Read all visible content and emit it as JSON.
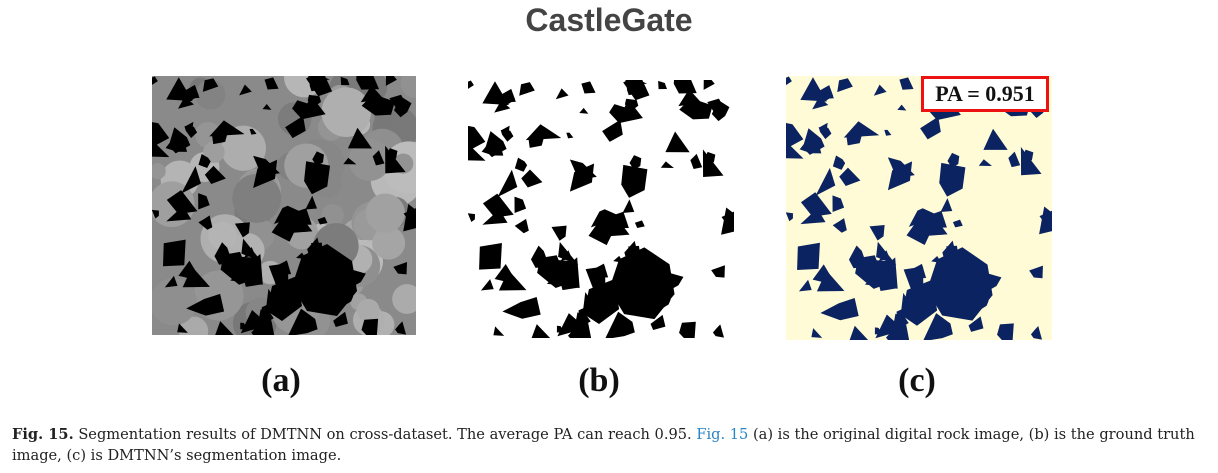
{
  "title": "CastleGate",
  "panels": [
    {
      "label": "(a)"
    },
    {
      "label": "(b)"
    },
    {
      "label": "(c)"
    }
  ],
  "pa_annotation": "PA = 0.951",
  "caption": {
    "fig_label": "Fig. 15.",
    "text_before_ref": "Segmentation results of DMTNN on cross-dataset. The average PA can reach 0.95.",
    "fig_ref": "Fig. 15",
    "text_after_ref": "(a) is the original digital rock image, (b) is the ground truth image, (c) is DMTNN’s segmentation image."
  },
  "colors": {
    "rock_gray": "#8a8a8a",
    "pore_black": "#000000",
    "segmentation_background": "#fffbd6",
    "segmentation_pore": "#0b2360",
    "annotation_border": "#ee1111",
    "link_blue": "#2a84c6"
  }
}
